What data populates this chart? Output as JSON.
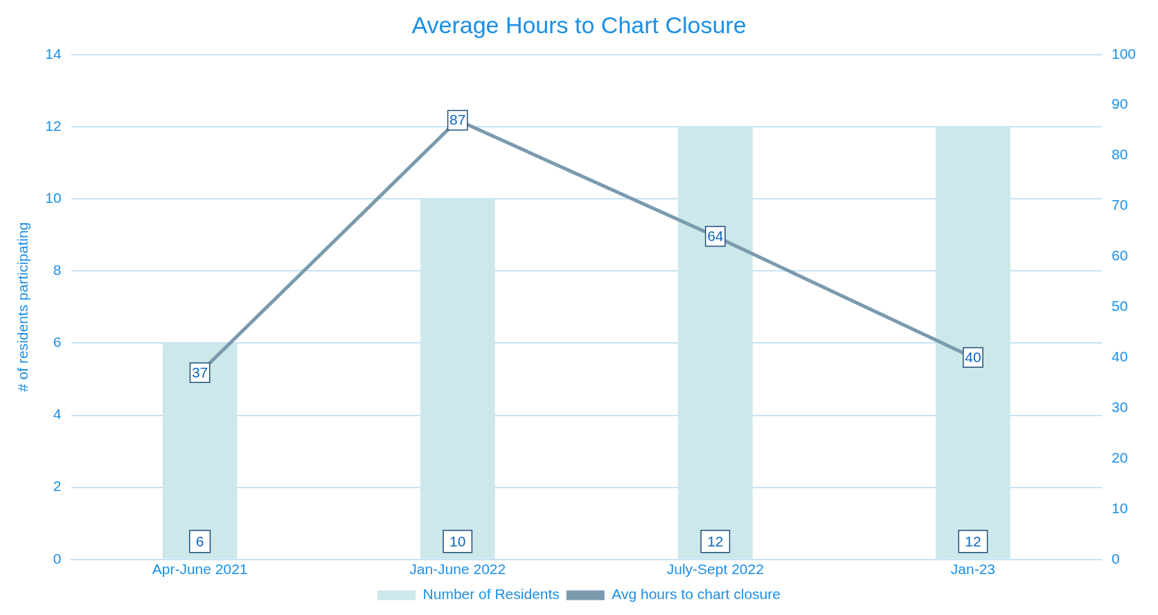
{
  "chart_data": {
    "type": "bar",
    "title": "Average Hours to Chart Closure",
    "ylabel": "# of residents participating",
    "categories": [
      "Apr-June 2021",
      "Jan-June 2022",
      "July-Sept 2022",
      "Jan-23"
    ],
    "series": [
      {
        "name": "Number of Residents",
        "color": "#cde8eb",
        "values": [
          6,
          10,
          12,
          12
        ]
      },
      {
        "name": "Avg hours to chart closure",
        "type": "line",
        "axis": "y2",
        "color": "#7a9aae",
        "marker": "square",
        "values": [
          37,
          87,
          64,
          40
        ]
      }
    ],
    "ylim": [
      0,
      14
    ],
    "yticks": [
      0,
      2,
      4,
      6,
      8,
      10,
      12,
      14
    ],
    "y2lim": [
      0,
      100
    ],
    "y2ticks": [
      0,
      10,
      20,
      30,
      40,
      50,
      60,
      70,
      80,
      90,
      100
    ],
    "grid": "y",
    "legend": "bottom",
    "data_labels": true,
    "line_style": "solid"
  }
}
